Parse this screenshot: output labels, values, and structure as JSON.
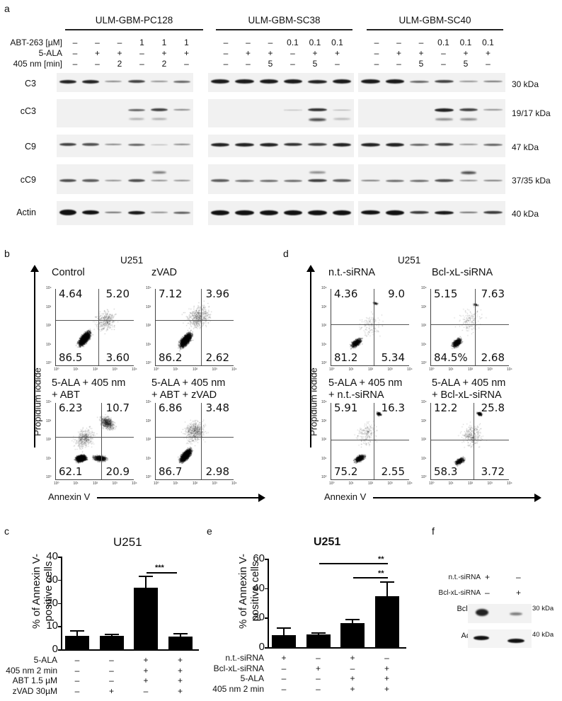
{
  "panel_a": {
    "letter": "a",
    "groups": [
      {
        "title": "ULM-GBM-PC128",
        "abt": [
          "–",
          "–",
          "–",
          "1",
          "1",
          "1"
        ],
        "ala": [
          "–",
          "+",
          "+",
          "–",
          "+",
          "+"
        ],
        "nm": [
          "–",
          "–",
          "2",
          "–",
          "2",
          "–"
        ]
      },
      {
        "title": "ULM-GBM-SC38",
        "abt": [
          "–",
          "–",
          "–",
          "0.1",
          "0.1",
          "0.1"
        ],
        "ala": [
          "–",
          "+",
          "+",
          "–",
          "+",
          "+"
        ],
        "nm": [
          "–",
          "–",
          "5",
          "–",
          "5",
          "–"
        ]
      },
      {
        "title": "ULM-GBM-SC40",
        "abt": [
          "–",
          "–",
          "–",
          "0.1",
          "0.1",
          "0.1"
        ],
        "ala": [
          "–",
          "+",
          "+",
          "–",
          "+",
          "+"
        ],
        "nm": [
          "–",
          "–",
          "5",
          "–",
          "5",
          "–"
        ]
      }
    ],
    "row_labels": {
      "abt": "ABT-263 [µM]",
      "ala": "5-ALA",
      "nm": "405 nm [min]"
    },
    "blots": [
      {
        "label": "C3",
        "kda": "30 kDa"
      },
      {
        "label": "cC3",
        "kda": "19/17 kDa"
      },
      {
        "label": "C9",
        "kda": "47 kDa"
      },
      {
        "label": "cC9",
        "kda": "37/35 kDa"
      },
      {
        "label": "Actin",
        "kda": "40 kDa"
      }
    ]
  },
  "panel_b": {
    "letter": "b",
    "title": "U251",
    "y_axis": "Propidium iodide",
    "x_axis": "Annexin V",
    "plots": [
      {
        "title": "Control",
        "ul": "4.64",
        "ur": "5.20",
        "ll": "86.5",
        "lr": "3.60"
      },
      {
        "title": "zVAD",
        "ul": "7.12",
        "ur": "3.96",
        "ll": "86.2",
        "lr": "2.62"
      },
      {
        "title": "5-ALA + 405 nm\n+ ABT",
        "title1": "5-ALA + 405 nm",
        "title2": "+ ABT",
        "ul": "6.23",
        "ur": "10.7",
        "ll": "62.1",
        "lr": "20.9"
      },
      {
        "title": "5-ALA + 405 nm\n+ ABT + zVAD",
        "title1": "5-ALA + 405 nm",
        "title2": "+ ABT + zVAD",
        "ul": "6.86",
        "ur": "3.48",
        "ll": "86.7",
        "lr": "2.98"
      }
    ],
    "ticks": [
      "10⁰",
      "10¹",
      "10²",
      "10³",
      "10⁴"
    ]
  },
  "panel_d": {
    "letter": "d",
    "title": "U251",
    "y_axis": "Propidium iodide",
    "x_axis": "Annexin V",
    "plots": [
      {
        "title": "n.t.-siRNA",
        "ul": "4.36",
        "ur": "9.0",
        "ll": "81.2",
        "lr": "5.34"
      },
      {
        "title": "Bcl-xL-siRNA",
        "ul": "5.15",
        "ur": "7.63",
        "ll": "84.5%",
        "lr": "2.68"
      },
      {
        "title1": "5-ALA + 405 nm",
        "title2": "+ n.t.-siRNA",
        "ul": "5.91",
        "ur": "16.3",
        "ll": "75.2",
        "lr": "2.55"
      },
      {
        "title1": "5-ALA + 405 nm",
        "title2": "+ Bcl-xL-siRNA",
        "ul": "12.2",
        "ur": "25.8",
        "ll": "58.3",
        "lr": "3.72"
      }
    ]
  },
  "panel_c": {
    "letter": "c",
    "title": "U251",
    "ylabel1": "% of Annexin V-",
    "ylabel2": "positive cells",
    "yticks": [
      "40",
      "30",
      "20",
      "10",
      "0"
    ],
    "sig": "***",
    "row_labels": [
      "5-ALA",
      "405 nm 2 min",
      "ABT 1.5 µM",
      "zVAD 30µM"
    ],
    "rows": [
      [
        "–",
        "–",
        "+",
        "+"
      ],
      [
        "–",
        "–",
        "+",
        "+"
      ],
      [
        "–",
        "–",
        "+",
        "+"
      ],
      [
        "–",
        "+",
        "–",
        "+"
      ]
    ]
  },
  "panel_e": {
    "letter": "e",
    "title": "U251",
    "ylabel1": "% of Annexin V-",
    "ylabel2": "positive cells",
    "yticks": [
      "60",
      "40",
      "20",
      "0"
    ],
    "sig": [
      "**",
      "**"
    ],
    "row_labels": [
      "n.t.-siRNA",
      "Bcl-xL-siRNA",
      "5-ALA",
      "405 nm 2 min"
    ],
    "rows": [
      [
        "+",
        "–",
        "+",
        "–"
      ],
      [
        "–",
        "+",
        "–",
        "+"
      ],
      [
        "–",
        "–",
        "+",
        "+"
      ],
      [
        "–",
        "–",
        "+",
        "+"
      ]
    ]
  },
  "panel_f": {
    "letter": "f",
    "row_labels": [
      "n.t.-siRNA",
      "Bcl-xL-siRNA"
    ],
    "rows": [
      [
        "+",
        "–"
      ],
      [
        "–",
        "+"
      ]
    ],
    "blots": [
      {
        "label": "Bcl-xL",
        "kda": "30 kDa"
      },
      {
        "label": "Actin",
        "kda": "40 kDa"
      }
    ]
  },
  "chart_data": [
    {
      "type": "bar",
      "title": "U251",
      "panel": "c",
      "categories": [
        "ctrl",
        "zVAD",
        "5-ALA+405nm+ABT",
        "5-ALA+405nm+ABT+zVAD"
      ],
      "values": [
        5.8,
        5.9,
        26.5,
        5.5
      ],
      "errors": [
        2.4,
        0.8,
        5.3,
        1.4
      ],
      "xlabel": "",
      "ylabel": "% of Annexin V-positive cells",
      "ylim": [
        0,
        40
      ],
      "significance": [
        {
          "between": [
            2,
            3
          ],
          "label": "***"
        }
      ]
    },
    {
      "type": "bar",
      "title": "U251",
      "panel": "e",
      "categories": [
        "n.t.-siRNA",
        "Bcl-xL-siRNA",
        "n.t.-siRNA+5-ALA+405nm",
        "Bcl-xL-siRNA+5-ALA+405nm"
      ],
      "values": [
        8.0,
        8.5,
        16.5,
        34.5
      ],
      "errors": [
        5.5,
        1.5,
        2.5,
        10.0
      ],
      "xlabel": "",
      "ylabel": "% of Annexin V-positive cells",
      "ylim": [
        0,
        60
      ],
      "significance": [
        {
          "between": [
            1,
            3
          ],
          "label": "**"
        },
        {
          "between": [
            2,
            3
          ],
          "label": "**"
        }
      ]
    },
    {
      "type": "scatter",
      "panel": "b",
      "title": "U251 Annexin V / PI flow cytometry",
      "quadrants": [
        {
          "condition": "Control",
          "UL": 4.64,
          "UR": 5.2,
          "LL": 86.5,
          "LR": 3.6
        },
        {
          "condition": "zVAD",
          "UL": 7.12,
          "UR": 3.96,
          "LL": 86.2,
          "LR": 2.62
        },
        {
          "condition": "5-ALA + 405 nm + ABT",
          "UL": 6.23,
          "UR": 10.7,
          "LL": 62.1,
          "LR": 20.9
        },
        {
          "condition": "5-ALA + 405 nm + ABT + zVAD",
          "UL": 6.86,
          "UR": 3.48,
          "LL": 86.7,
          "LR": 2.98
        }
      ]
    },
    {
      "type": "scatter",
      "panel": "d",
      "title": "U251 Annexin V / PI flow cytometry",
      "quadrants": [
        {
          "condition": "n.t.-siRNA",
          "UL": 4.36,
          "UR": 9.0,
          "LL": 81.2,
          "LR": 5.34
        },
        {
          "condition": "Bcl-xL-siRNA",
          "UL": 5.15,
          "UR": 7.63,
          "LL": 84.5,
          "LR": 2.68
        },
        {
          "condition": "5-ALA + 405 nm + n.t.-siRNA",
          "UL": 5.91,
          "UR": 16.3,
          "LL": 75.2,
          "LR": 2.55
        },
        {
          "condition": "5-ALA + 405 nm + Bcl-xL-siRNA",
          "UL": 12.2,
          "UR": 25.8,
          "LL": 58.3,
          "LR": 3.72
        }
      ]
    }
  ]
}
